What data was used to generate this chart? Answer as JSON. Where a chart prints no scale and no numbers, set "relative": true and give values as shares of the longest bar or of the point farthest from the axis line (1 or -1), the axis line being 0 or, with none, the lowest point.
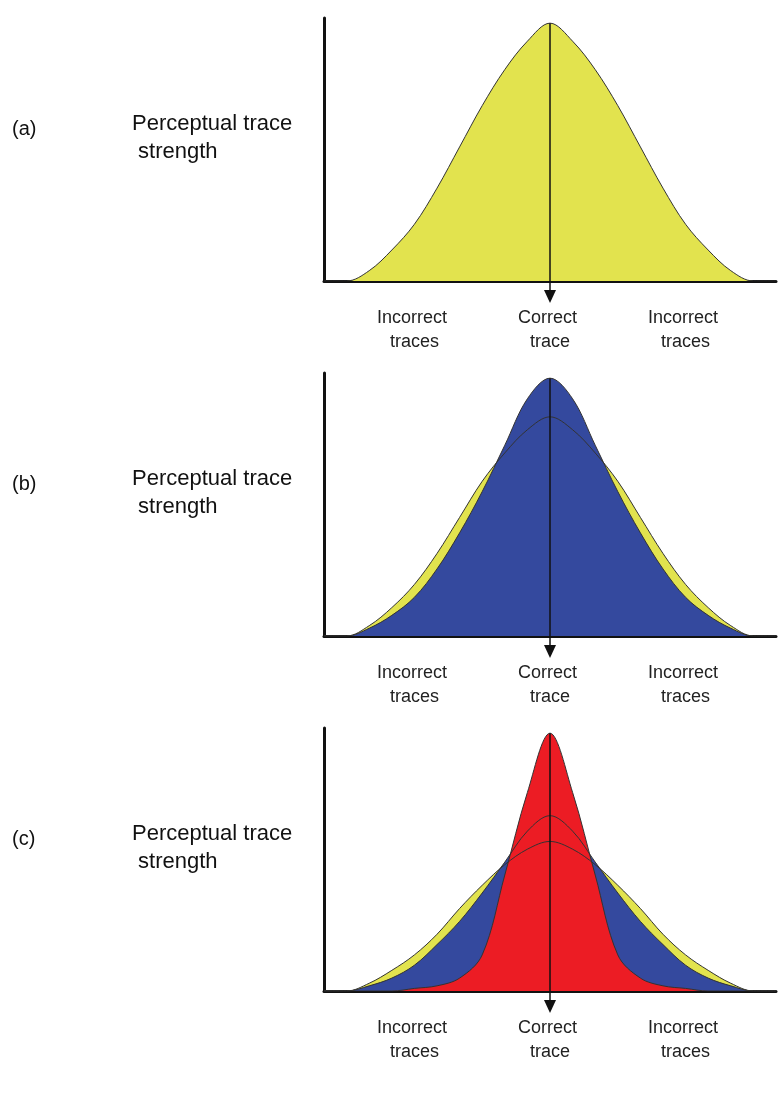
{
  "chart_data": [
    {
      "type": "area",
      "annotations": [
        "(a)"
      ],
      "ylabel": "Perceptual trace strength",
      "relative": true,
      "marker": "none",
      "categories": [
        null,
        null,
        null,
        null,
        "Incorrect traces",
        null,
        null,
        null,
        null,
        null,
        "Correct trace",
        null,
        null,
        null,
        null,
        null,
        "Incorrect traces",
        null,
        null,
        null,
        null
      ],
      "ref_lines": [
        {
          "axis": "x",
          "value": "Correct trace"
        }
      ],
      "series": [
        {
          "color": "#e2e34e",
          "values": [
            0,
            0,
            0.04,
            0.12,
            0.22,
            0.36,
            0.52,
            0.68,
            0.82,
            0.93,
            1,
            0.93,
            0.82,
            0.68,
            0.52,
            0.36,
            0.22,
            0.12,
            0.04,
            0,
            0
          ]
        }
      ]
    },
    {
      "type": "area",
      "annotations": [
        "(b)"
      ],
      "ylabel": "Perceptual trace strength",
      "relative": true,
      "marker": "none",
      "categories": [
        null,
        null,
        null,
        null,
        "Incorrect traces",
        null,
        null,
        null,
        null,
        null,
        "Correct trace",
        null,
        null,
        null,
        null,
        null,
        "Incorrect traces",
        null,
        null,
        null,
        null
      ],
      "ref_lines": [
        {
          "axis": "x",
          "value": "Correct trace"
        }
      ],
      "series": [
        {
          "color": "#e2e34e",
          "values": [
            0,
            0,
            0.04,
            0.11,
            0.2,
            0.32,
            0.46,
            0.6,
            0.71,
            0.8,
            0.85,
            0.8,
            0.71,
            0.6,
            0.46,
            0.32,
            0.2,
            0.11,
            0.04,
            0,
            0
          ]
        },
        {
          "color": "#34499e",
          "values": [
            0,
            0,
            0.03,
            0.08,
            0.15,
            0.26,
            0.4,
            0.56,
            0.74,
            0.92,
            1,
            0.92,
            0.74,
            0.56,
            0.4,
            0.26,
            0.15,
            0.08,
            0.03,
            0,
            0
          ]
        }
      ]
    },
    {
      "type": "area",
      "annotations": [
        "(c)"
      ],
      "ylabel": "Perceptual trace strength",
      "relative": true,
      "marker": "none",
      "categories": [
        null,
        null,
        null,
        null,
        "Incorrect traces",
        null,
        null,
        null,
        null,
        null,
        "Correct trace",
        null,
        null,
        null,
        null,
        null,
        "Incorrect traces",
        null,
        null,
        null,
        null
      ],
      "ref_lines": [
        {
          "axis": "x",
          "value": "Correct trace"
        }
      ],
      "series": [
        {
          "color": "#e2e34e",
          "values": [
            0,
            0,
            0.03,
            0.08,
            0.14,
            0.22,
            0.32,
            0.41,
            0.49,
            0.55,
            0.58,
            0.55,
            0.49,
            0.41,
            0.32,
            0.22,
            0.14,
            0.08,
            0.03,
            0,
            0
          ]
        },
        {
          "color": "#34499e",
          "values": [
            0,
            0,
            0.02,
            0.05,
            0.1,
            0.18,
            0.27,
            0.38,
            0.5,
            0.62,
            0.68,
            0.62,
            0.5,
            0.38,
            0.27,
            0.18,
            0.1,
            0.05,
            0.02,
            0,
            0
          ]
        },
        {
          "color": "#ec1c24",
          "values": [
            0,
            0,
            0,
            0,
            0.01,
            0.02,
            0.05,
            0.14,
            0.45,
            0.77,
            1,
            0.77,
            0.45,
            0.14,
            0.05,
            0.02,
            0.01,
            0,
            0,
            0,
            0
          ]
        }
      ]
    }
  ]
}
